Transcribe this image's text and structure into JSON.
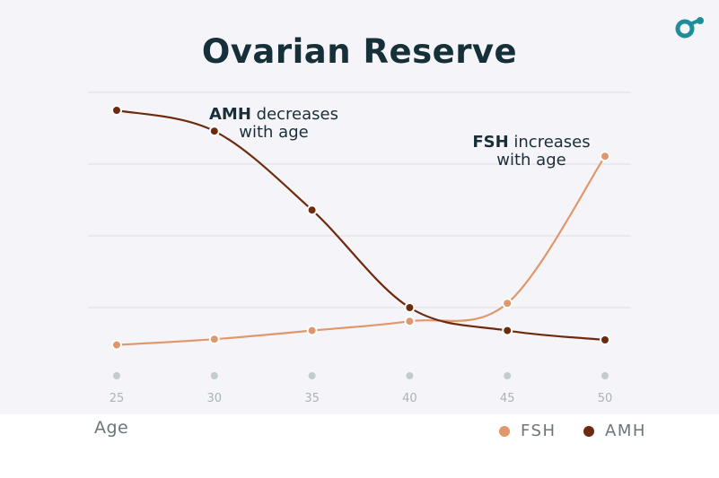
{
  "chart_data": {
    "type": "line",
    "title": "Ovarian Reserve",
    "xlabel": "Age",
    "ylabel": "",
    "x": [
      25,
      30,
      35,
      40,
      45,
      50
    ],
    "ylim": [
      0,
      4.25
    ],
    "grid": true,
    "y_tick_labels_shown": false,
    "legend_position": "bottom-right",
    "series": [
      {
        "name": "FSH",
        "color": "#e0976b",
        "values": [
          0.48,
          0.56,
          0.68,
          0.81,
          1.06,
          3.11
        ]
      },
      {
        "name": "AMH",
        "color": "#6e2a0e",
        "values": [
          3.75,
          3.46,
          2.36,
          1.0,
          0.68,
          0.55
        ]
      }
    ],
    "annotations": [
      {
        "bold": "AMH",
        "text": " decreases",
        "line2": "with age"
      },
      {
        "bold": "FSH",
        "text": " increases",
        "line2": "with age"
      }
    ]
  },
  "colors": {
    "background": "#f5f5f9",
    "title": "#16303a",
    "grid": "#dedee4",
    "tick_dot": "#c2cccd",
    "logo": "#1f8e99"
  },
  "logo_icon": "teal-circle-dot-logo"
}
